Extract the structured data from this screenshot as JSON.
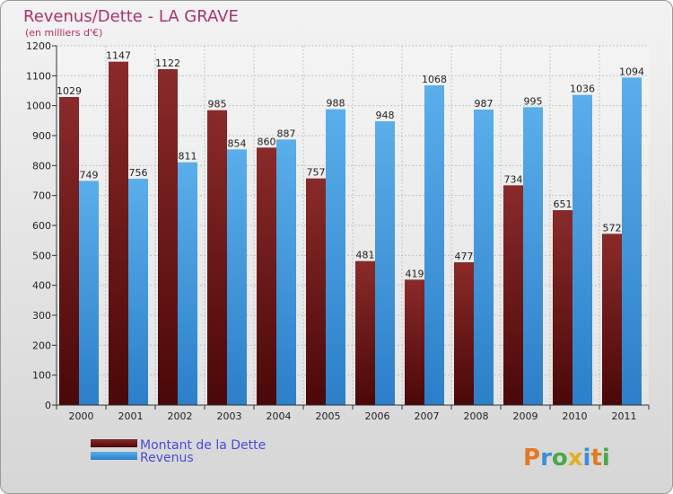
{
  "chart_data": {
    "type": "bar",
    "title": "Revenus/Dette - LA GRAVE",
    "subtitle": "(en milliers d'€)",
    "categories": [
      "2000",
      "2001",
      "2002",
      "2003",
      "2004",
      "2005",
      "2006",
      "2007",
      "2008",
      "2009",
      "2010",
      "2011"
    ],
    "series": [
      {
        "name": "Montant de la Dette",
        "color": "#7a1c1c",
        "values": [
          1029,
          1147,
          1122,
          985,
          860,
          757,
          481,
          419,
          477,
          734,
          651,
          572
        ]
      },
      {
        "name": "Revenus",
        "color": "#4aa3e8",
        "values": [
          749,
          756,
          811,
          854,
          887,
          988,
          948,
          1068,
          987,
          995,
          1036,
          1094
        ]
      }
    ],
    "ylim": [
      0,
      1200
    ],
    "yticks": [
      0,
      100,
      200,
      300,
      400,
      500,
      600,
      700,
      800,
      900,
      1000,
      1100,
      1200
    ],
    "grid": true,
    "legend_position": "bottom-left"
  },
  "brand": {
    "letters": [
      {
        "ch": "P",
        "color": "#e07a22"
      },
      {
        "ch": "r",
        "color": "#3b8fd6"
      },
      {
        "ch": "o",
        "color": "#4aa84a"
      },
      {
        "ch": "x",
        "color": "#e0b020"
      },
      {
        "ch": "i",
        "color": "#3b8fd6"
      },
      {
        "ch": "t",
        "color": "#e07a22"
      },
      {
        "ch": "i",
        "color": "#4aa84a"
      }
    ]
  }
}
